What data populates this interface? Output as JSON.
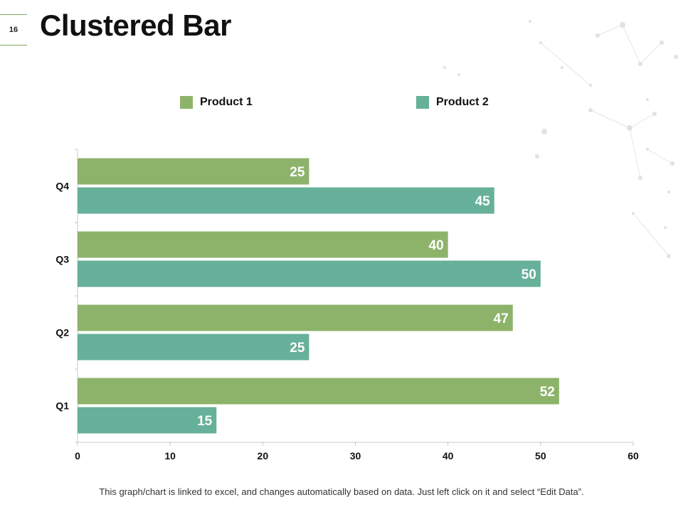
{
  "slide": {
    "number": "16",
    "title": "Clustered Bar",
    "footnote": "This graph/chart is linked to excel, and changes automatically based on data. Just left click on it and select “Edit Data”."
  },
  "colors": {
    "product1": "#8db36b",
    "product2": "#67b099",
    "axis": "#c8c8c8",
    "label": "#ffffff"
  },
  "chart_data": {
    "type": "bar",
    "orientation": "horizontal",
    "title": "",
    "categories": [
      "Q1",
      "Q2",
      "Q3",
      "Q4"
    ],
    "series": [
      {
        "name": "Product 1",
        "values": [
          52,
          47,
          40,
          25
        ]
      },
      {
        "name": "Product 2",
        "values": [
          15,
          25,
          50,
          45
        ]
      }
    ],
    "xlim": [
      0,
      60
    ],
    "xticks": [
      0,
      10,
      20,
      30,
      40,
      50,
      60
    ],
    "xlabel": "",
    "ylabel": "",
    "grid": false,
    "legend": "top"
  }
}
